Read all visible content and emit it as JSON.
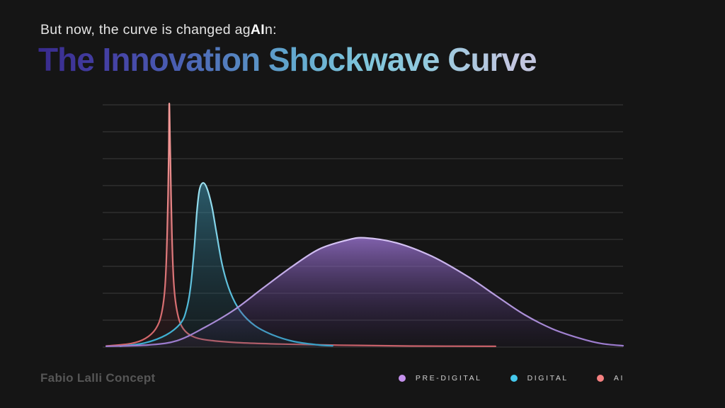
{
  "slide": {
    "kicker": {
      "prefix": "But now, the curve is changed ag",
      "emphasis": "AI",
      "suffix": "n:"
    },
    "title": "The Innovation Shockwave Curve",
    "credit": "Fabio Lalli Concept"
  },
  "colors": {
    "background": "#151515",
    "grid_line": "#3b3b3b",
    "kicker_text": "#e4e4e4",
    "kicker_emphasis": "#ffffff",
    "credit_text": "#565656",
    "legend_text": "#cfcfcf",
    "title_gradient": [
      "#382a8c 0%",
      "#4542a6 15%",
      "#4b64b4 30%",
      "#60a5cd 50%",
      "#7ec5db 65%",
      "#93cade 78%",
      "#c2c6e0 95%"
    ]
  },
  "legend": {
    "position": "bottom-right",
    "items": [
      {
        "label": "PRE-DIGITAL",
        "color": "#c490ec"
      },
      {
        "label": "DIGITAL",
        "color": "#45c8ec"
      },
      {
        "label": "AI",
        "color": "#f58080"
      }
    ]
  },
  "chart_data": {
    "type": "area",
    "title": "The Innovation Shockwave Curve",
    "xlabel": "",
    "ylabel": "",
    "x_range": [
      0,
      100
    ],
    "y_range": [
      0,
      9
    ],
    "gridlines": {
      "horizontal_count": 10,
      "vertical": false
    },
    "legend_position": "bottom-right",
    "description_shape": "three overlapping adoption/impact waves: a broad slow pre-digital bell, a narrower taller digital wave, and an extremely narrow very tall AI spike",
    "series": [
      {
        "name": "PRE-DIGITAL",
        "stroke_top": "#d8c6f6",
        "stroke_bottom": "#9a79cc",
        "fill_top": {
          "color": "#9e76d6",
          "opacity": 0.78
        },
        "fill_bottom": {
          "color": "#3c2360",
          "opacity": 0.07
        },
        "points": [
          [
            0.7,
            0.03
          ],
          [
            8.8,
            0.08
          ],
          [
            14.3,
            0.24
          ],
          [
            19.7,
            0.74
          ],
          [
            25.2,
            1.37
          ],
          [
            30.6,
            2.16
          ],
          [
            36.1,
            2.95
          ],
          [
            41.5,
            3.63
          ],
          [
            46.9,
            3.97
          ],
          [
            50.3,
            4.06
          ],
          [
            56.5,
            3.87
          ],
          [
            63.3,
            3.37
          ],
          [
            70.1,
            2.63
          ],
          [
            75.5,
            1.92
          ],
          [
            81,
            1.21
          ],
          [
            86.4,
            0.68
          ],
          [
            91.8,
            0.32
          ],
          [
            95.9,
            0.13
          ],
          [
            100,
            0.05
          ]
        ]
      },
      {
        "name": "DIGITAL",
        "stroke_top": "#9fe2f1",
        "stroke_bottom": "#38acd0",
        "fill_top": {
          "color": "#3e96b2",
          "opacity": 0.55
        },
        "fill_bottom": {
          "color": "#1a5064",
          "opacity": 0.12
        },
        "points": [
          [
            3.4,
            0.03
          ],
          [
            8.2,
            0.16
          ],
          [
            12.2,
            0.45
          ],
          [
            15,
            0.89
          ],
          [
            16.1,
            1.39
          ],
          [
            16.9,
            2.24
          ],
          [
            17.6,
            3.68
          ],
          [
            18.1,
            5.0
          ],
          [
            18.6,
            5.84
          ],
          [
            19.3,
            6.1
          ],
          [
            20.1,
            5.87
          ],
          [
            21,
            5.21
          ],
          [
            21.9,
            4.21
          ],
          [
            23,
            3.03
          ],
          [
            24.5,
            2.05
          ],
          [
            26.5,
            1.32
          ],
          [
            29.3,
            0.79
          ],
          [
            32.7,
            0.45
          ],
          [
            36.7,
            0.21
          ],
          [
            41.5,
            0.08
          ],
          [
            44.2,
            0.05
          ]
        ]
      },
      {
        "name": "AI",
        "stroke_top": "#f59c9a",
        "stroke_bottom": "#d26569",
        "fill_top": {
          "color": "#c84b57",
          "opacity": 0.55
        },
        "fill_bottom": {
          "color": "#8c2d3c",
          "opacity": 0.08
        },
        "points": [
          [
            0.7,
            0.04
          ],
          [
            5.4,
            0.13
          ],
          [
            8.2,
            0.32
          ],
          [
            10.2,
            0.68
          ],
          [
            11.3,
            1.24
          ],
          [
            12,
            2.29
          ],
          [
            12.4,
            4.21
          ],
          [
            12.7,
            7.11
          ],
          [
            12.8,
            9.05
          ],
          [
            13,
            7.11
          ],
          [
            13.3,
            4.21
          ],
          [
            13.7,
            2.29
          ],
          [
            14.4,
            1.24
          ],
          [
            15.5,
            0.68
          ],
          [
            17.6,
            0.37
          ],
          [
            21.1,
            0.24
          ],
          [
            26.5,
            0.16
          ],
          [
            34.7,
            0.11
          ],
          [
            45.6,
            0.07
          ],
          [
            59.2,
            0.04
          ],
          [
            75.5,
            0.03
          ]
        ]
      }
    ]
  }
}
